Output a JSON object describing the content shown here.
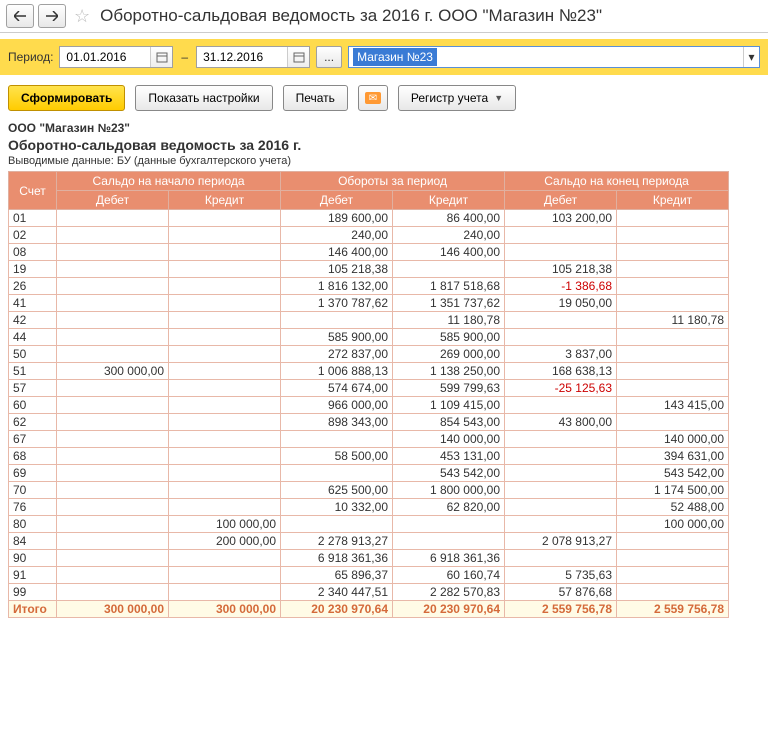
{
  "header": {
    "title": "Оборотно-сальдовая ведомость за 2016 г. ООО \"Магазин №23\""
  },
  "period": {
    "label": "Период:",
    "from": "01.01.2016",
    "to": "31.12.2016",
    "org_selected": "Магазин №23"
  },
  "toolbar": {
    "form": "Сформировать",
    "show_settings": "Показать настройки",
    "print": "Печать",
    "register": "Регистр учета"
  },
  "report": {
    "org": "ООО \"Магазин №23\"",
    "title": "Оборотно-сальдовая ведомость за 2016 г.",
    "subtitle": "Выводимые данные:  БУ (данные бухгалтерского учета)",
    "head": {
      "acct": "Счет",
      "open": "Сальдо на начало периода",
      "turn": "Обороты за период",
      "close": "Сальдо на конец периода",
      "debit": "Дебет",
      "credit": "Кредит"
    },
    "rows": [
      {
        "a": "01",
        "od": "",
        "oc": "",
        "td": "189 600,00",
        "tc": "86 400,00",
        "cd": "103 200,00",
        "cc": ""
      },
      {
        "a": "02",
        "od": "",
        "oc": "",
        "td": "240,00",
        "tc": "240,00",
        "cd": "",
        "cc": ""
      },
      {
        "a": "08",
        "od": "",
        "oc": "",
        "td": "146 400,00",
        "tc": "146 400,00",
        "cd": "",
        "cc": ""
      },
      {
        "a": "19",
        "od": "",
        "oc": "",
        "td": "105 218,38",
        "tc": "",
        "cd": "105 218,38",
        "cc": ""
      },
      {
        "a": "26",
        "od": "",
        "oc": "",
        "td": "1 816 132,00",
        "tc": "1 817 518,68",
        "cd": "-1 386,68",
        "cc": "",
        "neg": "cd"
      },
      {
        "a": "41",
        "od": "",
        "oc": "",
        "td": "1 370 787,62",
        "tc": "1 351 737,62",
        "cd": "19 050,00",
        "cc": ""
      },
      {
        "a": "42",
        "od": "",
        "oc": "",
        "td": "",
        "tc": "11 180,78",
        "cd": "",
        "cc": "11 180,78"
      },
      {
        "a": "44",
        "od": "",
        "oc": "",
        "td": "585 900,00",
        "tc": "585 900,00",
        "cd": "",
        "cc": ""
      },
      {
        "a": "50",
        "od": "",
        "oc": "",
        "td": "272 837,00",
        "tc": "269 000,00",
        "cd": "3 837,00",
        "cc": ""
      },
      {
        "a": "51",
        "od": "300 000,00",
        "oc": "",
        "td": "1 006 888,13",
        "tc": "1 138 250,00",
        "cd": "168 638,13",
        "cc": ""
      },
      {
        "a": "57",
        "od": "",
        "oc": "",
        "td": "574 674,00",
        "tc": "599 799,63",
        "cd": "-25 125,63",
        "cc": "",
        "neg": "cd"
      },
      {
        "a": "60",
        "od": "",
        "oc": "",
        "td": "966 000,00",
        "tc": "1 109 415,00",
        "cd": "",
        "cc": "143 415,00"
      },
      {
        "a": "62",
        "od": "",
        "oc": "",
        "td": "898 343,00",
        "tc": "854 543,00",
        "cd": "43 800,00",
        "cc": ""
      },
      {
        "a": "67",
        "od": "",
        "oc": "",
        "td": "",
        "tc": "140 000,00",
        "cd": "",
        "cc": "140 000,00"
      },
      {
        "a": "68",
        "od": "",
        "oc": "",
        "td": "58 500,00",
        "tc": "453 131,00",
        "cd": "",
        "cc": "394 631,00"
      },
      {
        "a": "69",
        "od": "",
        "oc": "",
        "td": "",
        "tc": "543 542,00",
        "cd": "",
        "cc": "543 542,00"
      },
      {
        "a": "70",
        "od": "",
        "oc": "",
        "td": "625 500,00",
        "tc": "1 800 000,00",
        "cd": "",
        "cc": "1 174 500,00"
      },
      {
        "a": "76",
        "od": "",
        "oc": "",
        "td": "10 332,00",
        "tc": "62 820,00",
        "cd": "",
        "cc": "52 488,00"
      },
      {
        "a": "80",
        "od": "",
        "oc": "100 000,00",
        "td": "",
        "tc": "",
        "cd": "",
        "cc": "100 000,00"
      },
      {
        "a": "84",
        "od": "",
        "oc": "200 000,00",
        "td": "2 278 913,27",
        "tc": "",
        "cd": "2 078 913,27",
        "cc": ""
      },
      {
        "a": "90",
        "od": "",
        "oc": "",
        "td": "6 918 361,36",
        "tc": "6 918 361,36",
        "cd": "",
        "cc": ""
      },
      {
        "a": "91",
        "od": "",
        "oc": "",
        "td": "65 896,37",
        "tc": "60 160,74",
        "cd": "5 735,63",
        "cc": ""
      },
      {
        "a": "99",
        "od": "",
        "oc": "",
        "td": "2 340 447,51",
        "tc": "2 282 570,83",
        "cd": "57 876,68",
        "cc": ""
      }
    ],
    "total": {
      "a": "Итого",
      "od": "300 000,00",
      "oc": "300 000,00",
      "td": "20 230 970,64",
      "tc": "20 230 970,64",
      "cd": "2 559 756,78",
      "cc": "2 559 756,78"
    }
  },
  "style": {
    "header_bg": "#e98e6f",
    "header_fg": "#ffffff",
    "row_border": "#e8b8a8",
    "total_bg": "#fffbe6",
    "total_fg": "#d46a3a",
    "neg_color": "#cc0000",
    "period_bar_bg": "#ffdb4d",
    "primary_btn_bg": "#ffcc00",
    "selection_bg": "#3a7bd5"
  }
}
